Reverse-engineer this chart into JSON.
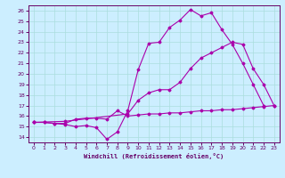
{
  "background_color": "#cceeff",
  "grid_color": "#aadddd",
  "line_color": "#aa00aa",
  "xlabel": "Windchill (Refroidissement éolien,°C)",
  "xlim": [
    -0.5,
    23.5
  ],
  "ylim": [
    13.5,
    26.5
  ],
  "yticks": [
    14,
    15,
    16,
    17,
    18,
    19,
    20,
    21,
    22,
    23,
    24,
    25,
    26
  ],
  "xticks": [
    0,
    1,
    2,
    3,
    4,
    5,
    6,
    7,
    8,
    9,
    10,
    11,
    12,
    13,
    14,
    15,
    16,
    17,
    18,
    19,
    20,
    21,
    22,
    23
  ],
  "line1_x": [
    0,
    1,
    2,
    3,
    4,
    5,
    6,
    7,
    8,
    9,
    10,
    11,
    12,
    13,
    14,
    15,
    16,
    17,
    18,
    19,
    20,
    21,
    22,
    23
  ],
  "line1_y": [
    15.4,
    15.4,
    15.3,
    15.3,
    15.7,
    15.8,
    15.8,
    15.7,
    16.5,
    16.0,
    16.1,
    16.2,
    16.2,
    16.3,
    16.3,
    16.4,
    16.5,
    16.5,
    16.6,
    16.6,
    16.7,
    16.8,
    16.9,
    17.0
  ],
  "line2_x": [
    0,
    1,
    2,
    3,
    4,
    5,
    6,
    7,
    8,
    9,
    10,
    11,
    12,
    13,
    14,
    15,
    16,
    17,
    18,
    19,
    20,
    21,
    22
  ],
  "line2_y": [
    15.4,
    15.4,
    15.3,
    15.2,
    15.0,
    15.1,
    14.9,
    13.8,
    14.5,
    16.5,
    20.4,
    22.9,
    23.0,
    24.4,
    25.1,
    26.1,
    25.5,
    25.8,
    24.2,
    22.8,
    21.0,
    19.0,
    17.0
  ],
  "line3_x": [
    0,
    3,
    9,
    10,
    11,
    12,
    13,
    14,
    15,
    16,
    17,
    18,
    19,
    20,
    21,
    22,
    23
  ],
  "line3_y": [
    15.4,
    15.5,
    16.2,
    17.5,
    18.2,
    18.5,
    18.5,
    19.2,
    20.5,
    21.5,
    22.0,
    22.5,
    23.0,
    22.8,
    20.5,
    19.0,
    17.0
  ]
}
